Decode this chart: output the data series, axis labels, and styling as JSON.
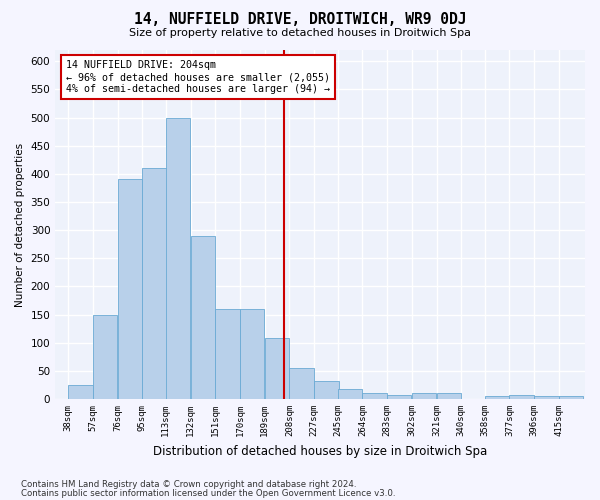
{
  "title": "14, NUFFIELD DRIVE, DROITWICH, WR9 0DJ",
  "subtitle": "Size of property relative to detached houses in Droitwich Spa",
  "xlabel": "Distribution of detached houses by size in Droitwich Spa",
  "ylabel": "Number of detached properties",
  "footnote1": "Contains HM Land Registry data © Crown copyright and database right 2024.",
  "footnote2": "Contains public sector information licensed under the Open Government Licence v3.0.",
  "annotation_line1": "14 NUFFIELD DRIVE: 204sqm",
  "annotation_line2": "← 96% of detached houses are smaller (2,055)",
  "annotation_line3": "4% of semi-detached houses are larger (94) →",
  "property_size": 204,
  "bar_color": "#b8d0ea",
  "bar_edgecolor": "#6aaad4",
  "vline_color": "#cc0000",
  "annotation_box_edgecolor": "#cc0000",
  "annotation_box_facecolor": "#ffffff",
  "background_color": "#eef2fb",
  "grid_color": "#ffffff",
  "categories": [
    "38sqm",
    "57sqm",
    "76sqm",
    "95sqm",
    "113sqm",
    "132sqm",
    "151sqm",
    "170sqm",
    "189sqm",
    "208sqm",
    "227sqm",
    "245sqm",
    "264sqm",
    "283sqm",
    "302sqm",
    "321sqm",
    "340sqm",
    "358sqm",
    "377sqm",
    "396sqm",
    "415sqm"
  ],
  "values": [
    25,
    150,
    390,
    410,
    500,
    290,
    160,
    160,
    108,
    55,
    32,
    17,
    10,
    8,
    10,
    10,
    0,
    5,
    7,
    5,
    5
  ],
  "bin_starts": [
    38,
    57,
    76,
    95,
    113,
    132,
    151,
    170,
    189,
    208,
    227,
    245,
    264,
    283,
    302,
    321,
    340,
    358,
    377,
    396,
    415
  ],
  "bin_width": 19,
  "ylim": [
    0,
    620
  ],
  "yticks": [
    0,
    50,
    100,
    150,
    200,
    250,
    300,
    350,
    400,
    450,
    500,
    550,
    600
  ],
  "xlim_left": 28,
  "xlim_right": 435
}
